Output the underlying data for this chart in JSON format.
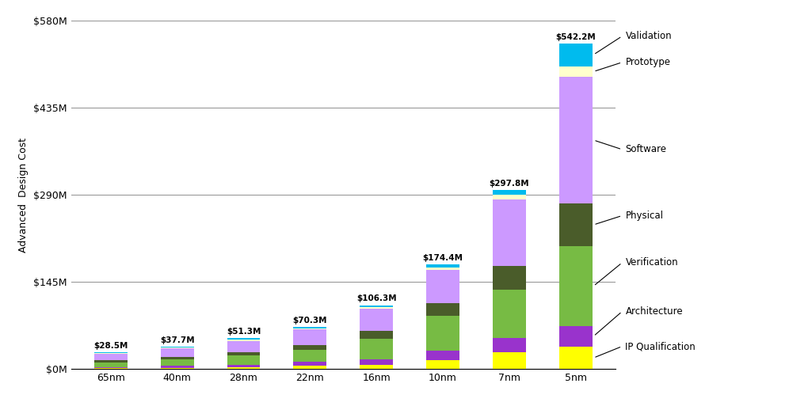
{
  "categories": [
    "65nm",
    "40nm",
    "28nm",
    "22nm",
    "16nm",
    "10nm",
    "7nm",
    "5nm"
  ],
  "totals": [
    28.5,
    37.7,
    51.3,
    70.3,
    106.3,
    174.4,
    297.8,
    542.2
  ],
  "segments": {
    "IP Qualification": [
      1.5,
      2.0,
      3.0,
      5.0,
      6.5,
      15.0,
      28.0,
      37.0
    ],
    "Architecture": [
      2.0,
      3.0,
      4.5,
      6.5,
      9.0,
      16.0,
      24.0,
      35.0
    ],
    "Verification": [
      7.5,
      10.5,
      14.5,
      20.0,
      35.0,
      57.0,
      80.0,
      132.0
    ],
    "Physical": [
      3.5,
      4.5,
      6.5,
      8.5,
      13.0,
      22.0,
      40.0,
      72.0
    ],
    "Software": [
      10.5,
      14.0,
      18.5,
      25.5,
      37.0,
      55.0,
      110.0,
      210.0
    ],
    "Prototype": [
      1.5,
      1.7,
      2.3,
      2.3,
      2.8,
      4.4,
      7.8,
      18.0
    ],
    "Validation": [
      2.0,
      2.0,
      2.0,
      2.5,
      3.0,
      5.0,
      8.0,
      38.2
    ]
  },
  "colors": {
    "IP Qualification": "#ffff00",
    "Architecture": "#9933cc",
    "Verification": "#77bb44",
    "Physical": "#4a5c2a",
    "Software": "#cc99ff",
    "Prototype": "#ffffcc",
    "Validation": "#00bbee"
  },
  "ylabel": "Advanced  Design Cost",
  "yticks": [
    0,
    145,
    290,
    435,
    580
  ],
  "ytick_labels": [
    "$0M",
    "$145M",
    "$290M",
    "$435M",
    "$580M"
  ],
  "ylim": [
    0,
    580
  ],
  "bar_width": 0.5,
  "bg_color": "#ffffff",
  "grid_color": "#999999",
  "annotation_labels": [
    "Validation",
    "Prototype",
    "Software",
    "Physical",
    "Verification",
    "Architecture",
    "IP Qualification"
  ],
  "annotation_y_fracs": [
    0.955,
    0.88,
    0.63,
    0.44,
    0.305,
    0.165,
    0.065
  ]
}
